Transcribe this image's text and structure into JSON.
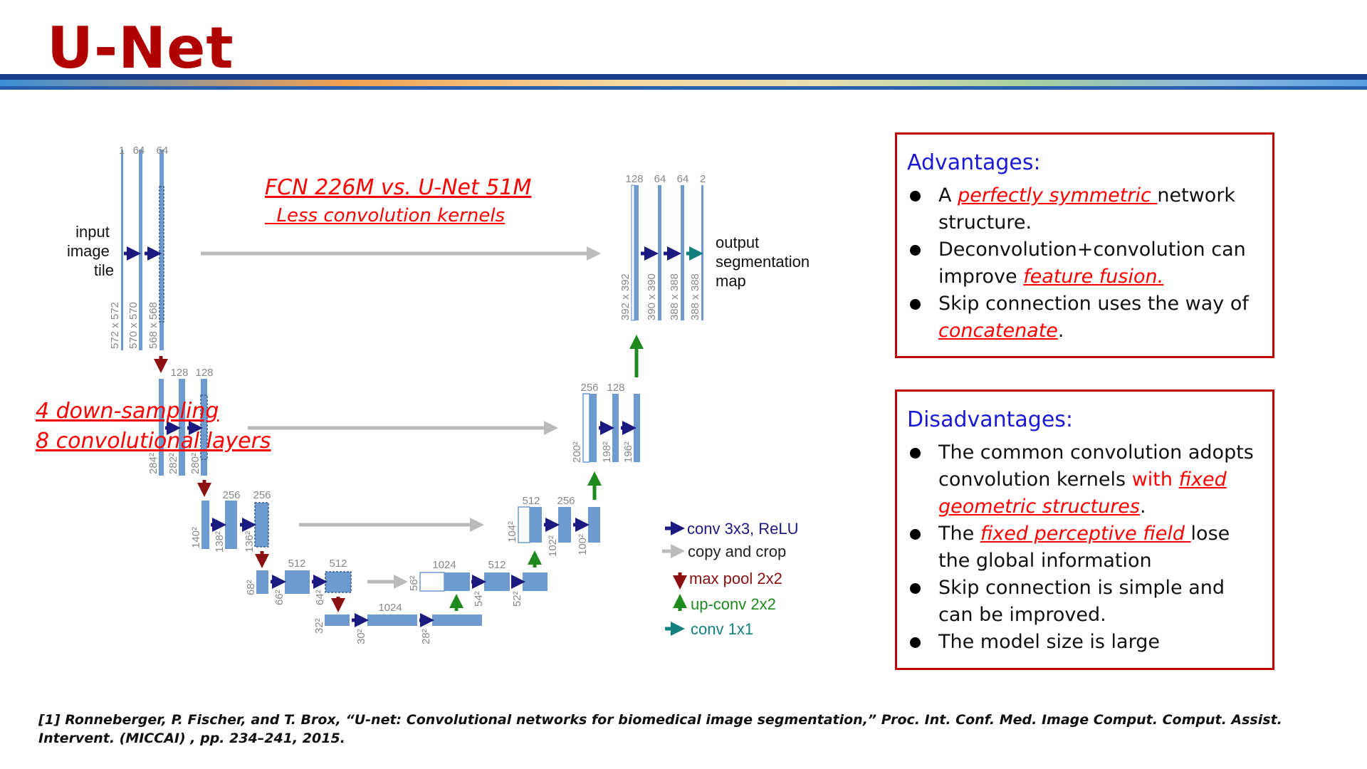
{
  "slide": {
    "title": "U-Net",
    "colors": {
      "title": "#b00000",
      "accent_blue": "#1a1ad6",
      "highlight_red": "#ff0000",
      "panel_border": "#c00000"
    }
  },
  "notes": {
    "fcn_compare": "FCN 226M vs. U-Net 51M",
    "fcn_sub": "Less convolution kernels",
    "down_sampling": "4 down-sampling",
    "conv_layers": "8 convolutional layers"
  },
  "diagram": {
    "input_label": [
      "input",
      "image",
      "tile"
    ],
    "output_label": [
      "output",
      "segmentation",
      "map"
    ],
    "channels": {
      "in1": "1",
      "in2": "64",
      "in3": "64",
      "l2a": "128",
      "l2b": "128",
      "l3a": "256",
      "l3b": "256",
      "l4a": "512",
      "l4b": "512",
      "l5a": "1024",
      "u4a": "1024",
      "u4b": "512",
      "u3a": "512",
      "u3b": "256",
      "u2a": "256",
      "u2b": "128",
      "u1a": "128",
      "u1b": "64",
      "u1c": "64",
      "u1d": "2"
    },
    "sizes": {
      "s572": "572 x 572",
      "s570": "570 x 570",
      "s568": "568 x 568",
      "s284": "284²",
      "s282": "282²",
      "s280": "280²",
      "s140": "140²",
      "s138": "138²",
      "s136": "136²",
      "s68": "68²",
      "s66": "66²",
      "s64": "64²",
      "s32": "32²",
      "s30": "30²",
      "s28": "28²",
      "s56": "56²",
      "s54": "54²",
      "s52": "52²",
      "s104": "104²",
      "s102": "102²",
      "s100": "100²",
      "s200": "200²",
      "s198": "198²",
      "s196": "196²",
      "s392": "392 x 392",
      "s390": "390 x 390",
      "s388a": "388 x 388",
      "s388b": "388 x 388"
    },
    "legend": [
      {
        "label": "conv 3x3, ReLU",
        "color": "#1a1a80",
        "icon": "right-arrow-icon"
      },
      {
        "label": "copy and crop",
        "color": "#222222",
        "icon": "gray-right-arrow-icon"
      },
      {
        "label": "max pool 2x2",
        "color": "#8b1010",
        "icon": "down-arrow-icon"
      },
      {
        "label": "up-conv 2x2",
        "color": "#1e8a1e",
        "icon": "up-arrow-icon"
      },
      {
        "label": "conv 1x1",
        "color": "#138080",
        "icon": "teal-right-arrow-icon"
      }
    ]
  },
  "advantages": {
    "title": "Advantages:",
    "items": [
      {
        "pre": "A ",
        "hl": "perfectly symmetric ",
        "post": "network structure."
      },
      {
        "pre": "Deconvolution+convolution can improve ",
        "hl": "feature fusion.",
        "post": ""
      },
      {
        "pre": "Skip connection uses the way of ",
        "hl": "concatenate",
        "post": "."
      }
    ]
  },
  "disadvantages": {
    "title": "Disadvantages:",
    "items": [
      {
        "pre": "The common convolution adopts convolution kernels ",
        "red": "with ",
        "hl": "fixed geometric structures",
        "post": "."
      },
      {
        "pre": "The ",
        "hl": "fixed perceptive field ",
        "post": "lose the global information"
      },
      {
        "pre": "Skip connection is simple and can be improved.",
        "hl": "",
        "post": ""
      },
      {
        "pre": "The model size is large",
        "hl": "",
        "post": ""
      }
    ]
  },
  "reference": "[1] Ronneberger, P. Fischer, and T. Brox,  “U-net: Convolutional networks for biomedical image segmentation,”  Proc. Int. Conf. Med. Image Comput. Comput. Assist. Intervent. (MICCAI) , pp. 234–241, 2015."
}
